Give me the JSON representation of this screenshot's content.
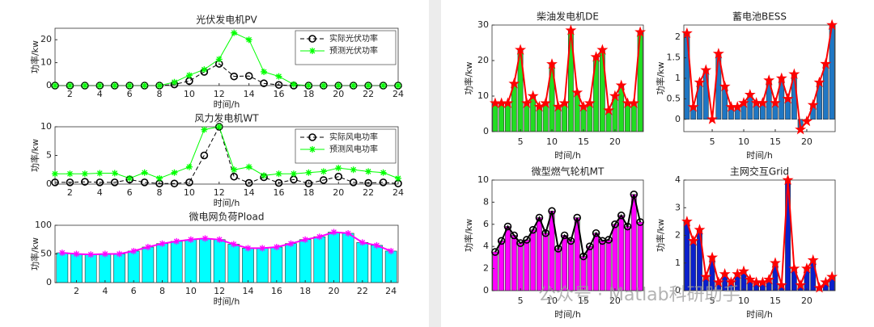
{
  "watermark": "公众号 · Matlab科研助手",
  "chart_data": [
    {
      "type": "line",
      "title": "光伏发电机PV",
      "xlabel": "时间/h",
      "ylabel": "功率/kw",
      "x": [
        1,
        2,
        3,
        4,
        5,
        6,
        7,
        8,
        9,
        10,
        11,
        12,
        13,
        14,
        15,
        16,
        17,
        18,
        19,
        20,
        21,
        22,
        23,
        24
      ],
      "xlim": [
        1,
        24
      ],
      "xticks": [
        2,
        4,
        6,
        8,
        10,
        12,
        14,
        16,
        18,
        20,
        22,
        24
      ],
      "ylim": [
        0,
        25
      ],
      "yticks": [
        0,
        10,
        20
      ],
      "legend": "northeast",
      "series": [
        {
          "name": "实际光伏功率",
          "color": "#000000",
          "line_style": "--",
          "marker": "circle",
          "values": [
            0,
            0,
            0,
            0,
            0,
            0,
            0,
            0,
            0.5,
            2,
            6,
            9.5,
            4,
            4.2,
            1,
            0.3,
            0,
            0,
            0,
            0,
            0,
            0,
            0,
            0
          ]
        },
        {
          "name": "预测光伏功率",
          "color": "#00ff00",
          "line_style": "-",
          "marker": "asterisk",
          "values": [
            0,
            0,
            0,
            0,
            0,
            0,
            0,
            0,
            1.5,
            4.5,
            7,
            11.5,
            23,
            20,
            6,
            4,
            0.5,
            0,
            0,
            0,
            0,
            0,
            0,
            0
          ]
        }
      ]
    },
    {
      "type": "line",
      "title": "风力发电机WT",
      "xlabel": "时间/h",
      "ylabel": "功率/kw",
      "x": [
        1,
        2,
        3,
        4,
        5,
        6,
        7,
        8,
        9,
        10,
        11,
        12,
        13,
        14,
        15,
        16,
        17,
        18,
        19,
        20,
        21,
        22,
        23,
        24
      ],
      "xlim": [
        1,
        24
      ],
      "xticks": [
        2,
        4,
        6,
        8,
        10,
        12,
        14,
        16,
        18,
        20,
        22,
        24
      ],
      "ylim": [
        0,
        10
      ],
      "yticks": [
        0,
        5,
        10
      ],
      "legend": "northeast",
      "series": [
        {
          "name": "实际风电功率",
          "color": "#000000",
          "line_style": "--",
          "marker": "circle",
          "values": [
            0.3,
            0.3,
            0.4,
            0.3,
            0.3,
            0.8,
            0.3,
            0.1,
            0.1,
            0.3,
            5,
            10,
            1.3,
            0.2,
            1.2,
            0.2,
            0.8,
            0.1,
            0.7,
            1.3,
            0.3,
            0.2,
            0.3,
            0.1
          ]
        },
        {
          "name": "预测风电功率",
          "color": "#00ff00",
          "line_style": "-",
          "marker": "asterisk",
          "values": [
            1.8,
            1.8,
            1.8,
            1.9,
            1.9,
            1,
            2,
            1,
            2,
            3,
            9.5,
            10,
            2.5,
            3,
            1.5,
            1.8,
            1.8,
            2,
            2.2,
            2.8,
            2.5,
            2.2,
            2,
            1
          ]
        }
      ]
    },
    {
      "type": "bar",
      "title": "微电网负荷Pload",
      "xlabel": "时间/h",
      "ylabel": "功率/kw",
      "x": [
        1,
        2,
        3,
        4,
        5,
        6,
        7,
        8,
        9,
        10,
        11,
        12,
        13,
        14,
        15,
        16,
        17,
        18,
        19,
        20,
        21,
        22,
        23,
        24
      ],
      "xlim": [
        0.5,
        24.5
      ],
      "xticks": [
        2,
        4,
        6,
        8,
        10,
        12,
        14,
        16,
        18,
        20,
        22,
        24
      ],
      "ylim": [
        0,
        100
      ],
      "yticks": [
        0,
        50,
        100
      ],
      "bar_color": "#00ffff",
      "line_color": "#ff00ff",
      "marker": "asterisk",
      "marker_color": "#ff00ff",
      "values": [
        52,
        50,
        49,
        50,
        50,
        55,
        62,
        68,
        72,
        75,
        77,
        75,
        67,
        60,
        60,
        62,
        68,
        75,
        80,
        88,
        86,
        70,
        65,
        55
      ]
    },
    {
      "type": "bar",
      "title": "柴油发电机DE",
      "xlabel": "时间/h",
      "ylabel": "功率/kw",
      "x": [
        1,
        2,
        3,
        4,
        5,
        6,
        7,
        8,
        9,
        10,
        11,
        12,
        13,
        14,
        15,
        16,
        17,
        18,
        19,
        20,
        21,
        22,
        23,
        24
      ],
      "xlim": [
        0.5,
        24.5
      ],
      "xticks": [
        5,
        10,
        15,
        20
      ],
      "ylim": [
        0,
        30
      ],
      "yticks": [
        0,
        10,
        20,
        30
      ],
      "bar_color": "#22dd22",
      "line_color": "#ff0000",
      "marker": "pentagram",
      "marker_color": "#ff0000",
      "values": [
        8,
        8,
        8,
        13.5,
        23,
        8,
        10,
        7,
        8,
        19,
        7,
        8,
        28.5,
        11,
        7,
        8,
        21,
        23,
        6,
        10,
        13,
        8,
        8,
        28
      ]
    },
    {
      "type": "bar",
      "title": "蓄电池BESS",
      "xlabel": "时间/h",
      "ylabel": "功率/kw",
      "x": [
        1,
        2,
        3,
        4,
        5,
        6,
        7,
        8,
        9,
        10,
        11,
        12,
        13,
        14,
        15,
        16,
        17,
        18,
        19,
        20,
        21,
        22,
        23,
        24
      ],
      "xlim": [
        0.5,
        24.5
      ],
      "xticks": [
        5,
        10,
        15,
        20
      ],
      "ylim": [
        -0.3,
        2.3
      ],
      "yticks": [
        0,
        0.5,
        1,
        1.5,
        2
      ],
      "bar_color": "#1f77c4",
      "line_color": "#ff0000",
      "marker": "pentagram",
      "marker_color": "#ff0000",
      "values": [
        2.1,
        0.3,
        0.9,
        1.2,
        0,
        1.6,
        0.8,
        0.3,
        0.3,
        0.4,
        0.6,
        0.4,
        0.4,
        0.95,
        0.4,
        1,
        0.5,
        1.1,
        -0.25,
        -0.05,
        0.35,
        0.9,
        1.35,
        2.3
      ]
    },
    {
      "type": "bar",
      "title": "微型燃气轮机MT",
      "xlabel": "时间/h",
      "ylabel": "功率/kw",
      "x": [
        1,
        2,
        3,
        4,
        5,
        6,
        7,
        8,
        9,
        10,
        11,
        12,
        13,
        14,
        15,
        16,
        17,
        18,
        19,
        20,
        21,
        22,
        23,
        24
      ],
      "xlim": [
        0.5,
        24.5
      ],
      "xticks": [
        5,
        10,
        15,
        20
      ],
      "ylim": [
        0,
        10
      ],
      "yticks": [
        0,
        2,
        4,
        6,
        8,
        10
      ],
      "bar_color": "#ff00ff",
      "line_color": "#000000",
      "marker": "circle",
      "marker_color": "#000000",
      "values": [
        3.5,
        4.5,
        5.8,
        5,
        4.3,
        4.6,
        5.5,
        6.6,
        5.2,
        7.2,
        3.8,
        5,
        4.5,
        6.6,
        3.1,
        4,
        5.2,
        4.5,
        4.6,
        6,
        6.8,
        5.8,
        8.7,
        6.2
      ]
    },
    {
      "type": "bar",
      "title": "主网交互Grid",
      "xlabel": "时间/h",
      "ylabel": "功率/kw",
      "x": [
        1,
        2,
        3,
        4,
        5,
        6,
        7,
        8,
        9,
        10,
        11,
        12,
        13,
        14,
        15,
        16,
        17,
        18,
        19,
        20,
        21,
        22,
        23,
        24
      ],
      "xlim": [
        0.5,
        24.5
      ],
      "xticks": [
        5,
        10,
        15,
        20
      ],
      "ylim": [
        0,
        4
      ],
      "yticks": [
        0,
        1,
        2,
        3,
        4
      ],
      "bar_color": "#0a1fcc",
      "line_color": "#ff0000",
      "marker": "pentagram",
      "marker_color": "#ff0000",
      "values": [
        2.5,
        1.8,
        2.2,
        0.5,
        1.2,
        0.3,
        0.6,
        0.3,
        0.6,
        0.7,
        0.4,
        0.3,
        0.3,
        0.4,
        1,
        0.2,
        4,
        0.8,
        0.2,
        0.8,
        1.1,
        0.1,
        0.3,
        0.5
      ]
    }
  ]
}
